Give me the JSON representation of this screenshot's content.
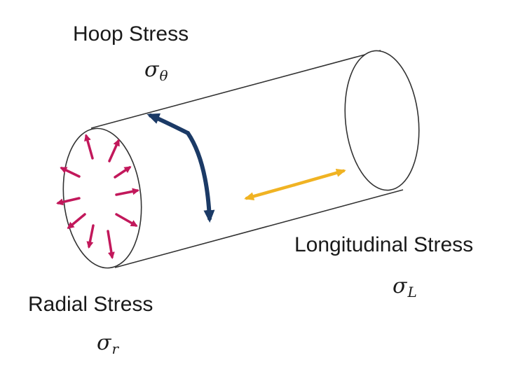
{
  "labels": {
    "hoop": {
      "name": "Hoop Stress",
      "symbol": "σ",
      "subscript": "θ"
    },
    "longitudinal": {
      "name": "Longitudinal Stress",
      "symbol": "σ",
      "subscript": "L"
    },
    "radial": {
      "name": "Radial Stress",
      "symbol": "σ",
      "subscript": "r"
    }
  },
  "colors": {
    "outline": "#333333",
    "radial_arrows": "#c2185b",
    "hoop_arrow": "#1b3a66",
    "longitudinal_arrow": "#f0b323"
  }
}
